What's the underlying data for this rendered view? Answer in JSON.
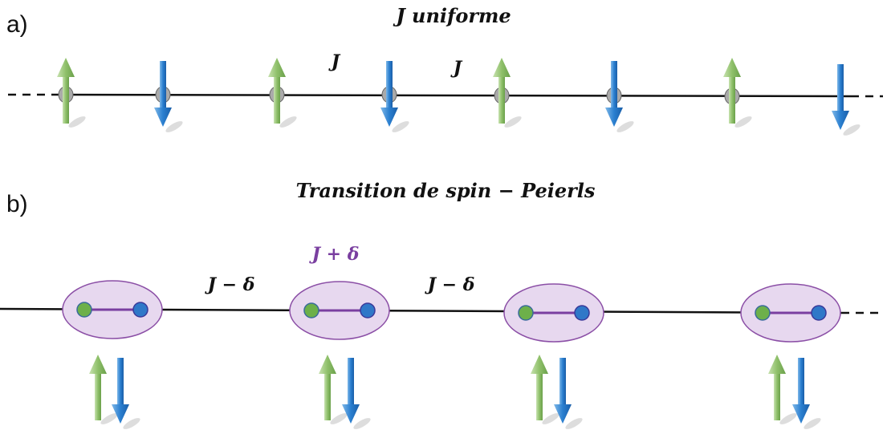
{
  "panels": [
    {
      "label": "a)",
      "title": "J  uniforme",
      "bonds": [
        "J",
        "J"
      ]
    },
    {
      "label": "b)",
      "title": "Transition de spin − Peierls",
      "bonds": [
        "J − δ",
        "J + δ",
        "J − δ"
      ]
    }
  ]
}
